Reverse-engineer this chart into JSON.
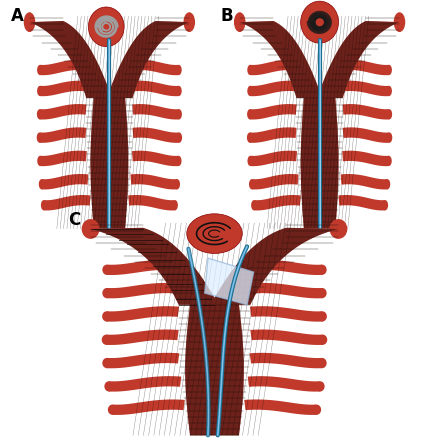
{
  "background_color": "#ffffff",
  "panel_labels": [
    "A",
    "B",
    "C"
  ],
  "panel_label_fontsize": 12,
  "panel_label_weight": "bold",
  "artery_color": "#c0392b",
  "artery_mid": "#a93226",
  "stent_mesh_color": "#1a0a0a",
  "stent_mesh_alpha": 0.55,
  "catheter_dark": "#1a6b8a",
  "catheter_light": "#5dade2",
  "coil_color_A": "#9e9e9e",
  "coil_color_B": "#1a1a1a",
  "balloon_fill": "#ddeeff",
  "balloon_edge": "#99bbdd",
  "fig_width": 4.29,
  "fig_height": 4.4,
  "dpi": 100
}
